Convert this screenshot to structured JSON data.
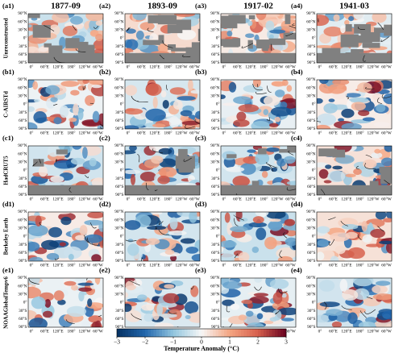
{
  "columns": [
    "1877-09",
    "1893-09",
    "1917-02",
    "1941-03"
  ],
  "rows": [
    {
      "name": "Unreconstructed",
      "panels": [
        "(a1)",
        "(a2)",
        "(a3)",
        "(a4)"
      ]
    },
    {
      "name": "C-AIRSTd",
      "panels": [
        "(b1)",
        "(b2)",
        "(b3)",
        "(b4)"
      ]
    },
    {
      "name": "HadCRUT5",
      "panels": [
        "(c1)",
        "(c2)",
        "(c3)",
        "(c4)"
      ]
    },
    {
      "name": "Berkeley Earth",
      "panels": [
        "(d1)",
        "(d2)",
        "(d3)",
        "(d4)"
      ]
    },
    {
      "name": "NOAAGlobalTempv6",
      "panels": [
        "(e1)",
        "(e2)",
        "(e3)",
        "(e4)"
      ]
    }
  ],
  "lat_ticks": [
    "90°N",
    "60°N",
    "30°N",
    "0°",
    "30°S",
    "60°S",
    "90°S"
  ],
  "lon_ticks": [
    "0°",
    "60°E",
    "120°E",
    "180°",
    "120°W",
    "60°W"
  ],
  "colorbar": {
    "label": "Temperature Anomaly (°C)",
    "lim": [
      -3,
      3
    ],
    "ticks": [
      {
        "value": -3,
        "label": "−3"
      },
      {
        "value": -2,
        "label": "−2"
      },
      {
        "value": -1,
        "label": "−1"
      },
      0,
      1,
      2,
      3
    ]
  }
}
